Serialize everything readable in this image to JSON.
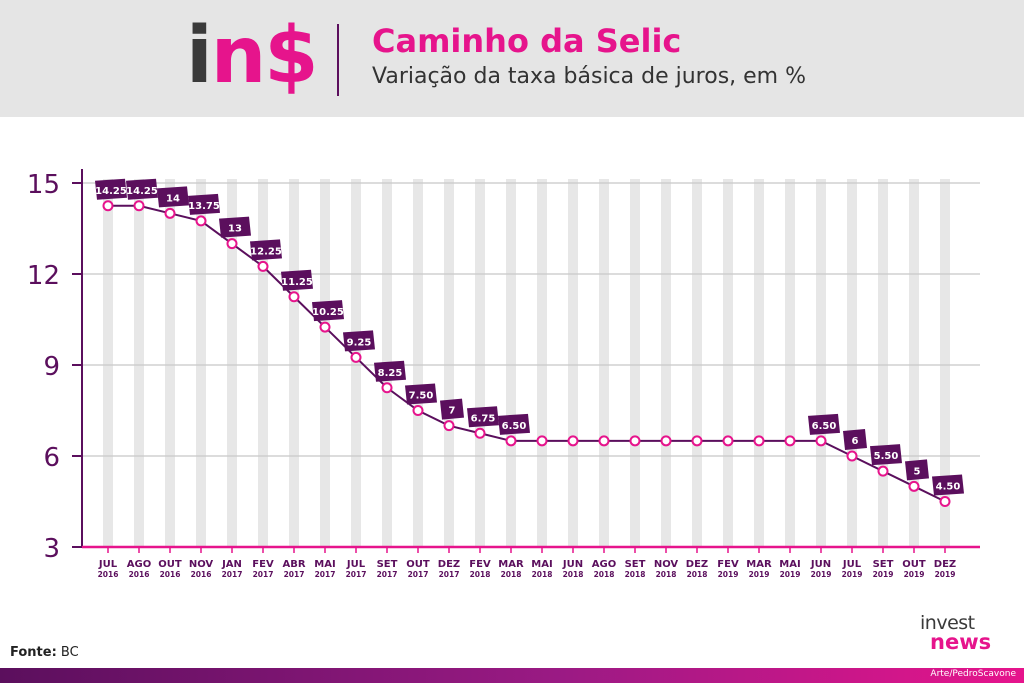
{
  "header": {
    "logo_i": "i",
    "logo_ns": "n$",
    "title": "Caminho da Selic",
    "subtitle": "Variação da taxa básica de juros, em %"
  },
  "footer": {
    "source_label": "Fonte:",
    "source_value": "BC",
    "brand_top": "invest",
    "brand_bottom": "news",
    "credit": "Arte/PedroScavone"
  },
  "colors": {
    "accent": "#e6148c",
    "dark_purple": "#5b0f5d",
    "header_bg": "#e5e5e5"
  },
  "chart_data": {
    "type": "line",
    "title": "Caminho da Selic",
    "subtitle": "Variação da taxa básica de juros, em %",
    "ylim": [
      3,
      15
    ],
    "yticks": [
      "15",
      "12",
      "9",
      "6",
      "3"
    ],
    "categories": [
      {
        "month": "JUL",
        "year": "2016"
      },
      {
        "month": "AGO",
        "year": "2016"
      },
      {
        "month": "OUT",
        "year": "2016"
      },
      {
        "month": "NOV",
        "year": "2016"
      },
      {
        "month": "JAN",
        "year": "2017"
      },
      {
        "month": "FEV",
        "year": "2017"
      },
      {
        "month": "ABR",
        "year": "2017"
      },
      {
        "month": "MAI",
        "year": "2017"
      },
      {
        "month": "JUL",
        "year": "2017"
      },
      {
        "month": "SET",
        "year": "2017"
      },
      {
        "month": "OUT",
        "year": "2017"
      },
      {
        "month": "DEZ",
        "year": "2017"
      },
      {
        "month": "FEV",
        "year": "2018"
      },
      {
        "month": "MAR",
        "year": "2018"
      },
      {
        "month": "MAI",
        "year": "2018"
      },
      {
        "month": "JUN",
        "year": "2018"
      },
      {
        "month": "AGO",
        "year": "2018"
      },
      {
        "month": "SET",
        "year": "2018"
      },
      {
        "month": "NOV",
        "year": "2018"
      },
      {
        "month": "DEZ",
        "year": "2018"
      },
      {
        "month": "FEV",
        "year": "2019"
      },
      {
        "month": "MAR",
        "year": "2019"
      },
      {
        "month": "MAI",
        "year": "2019"
      },
      {
        "month": "JUN",
        "year": "2019"
      },
      {
        "month": "JUL",
        "year": "2019"
      },
      {
        "month": "SET",
        "year": "2019"
      },
      {
        "month": "OUT",
        "year": "2019"
      },
      {
        "month": "DEZ",
        "year": "2019"
      }
    ],
    "values": [
      14.25,
      14.25,
      14,
      13.75,
      13,
      12.25,
      11.25,
      10.25,
      9.25,
      8.25,
      7.5,
      7,
      6.75,
      6.5,
      6.5,
      6.5,
      6.5,
      6.5,
      6.5,
      6.5,
      6.5,
      6.5,
      6.5,
      6.5,
      6,
      5.5,
      5,
      4.5
    ],
    "labels": [
      "14.25",
      "14.25",
      "14",
      "13.75",
      "13",
      "12.25",
      "11.25",
      "10.25",
      "9.25",
      "8.25",
      "7.50",
      "7",
      "6.75",
      "6.50",
      null,
      null,
      null,
      null,
      null,
      null,
      null,
      null,
      null,
      "6.50",
      "6",
      "5.50",
      "5",
      "4.50"
    ],
    "grid": true,
    "legend": "none"
  }
}
